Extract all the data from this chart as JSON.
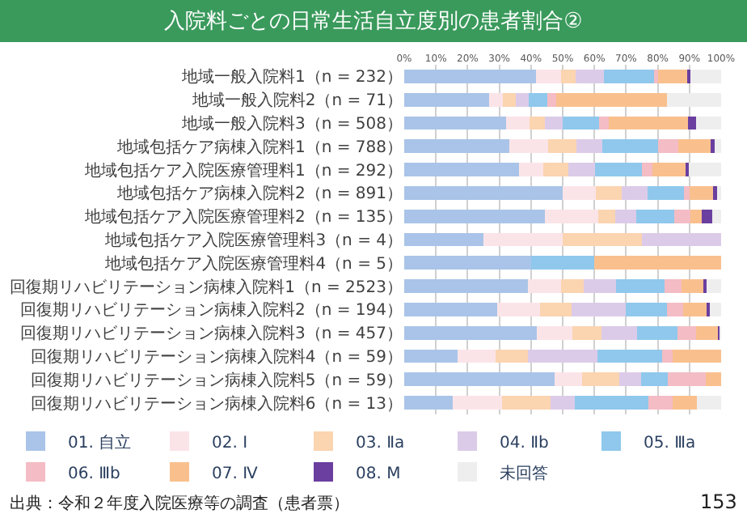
{
  "chart_data": {
    "type": "bar",
    "orientation": "horizontal",
    "stacked": true,
    "title": "入院料ごとの日常生活自立度別の患者割合②",
    "categories": [
      "地域一般入院料1（n = 232）",
      "地域一般入院料2（n = 71）",
      "地域一般入院料3（n = 508）",
      "地域包括ケア病棟入院料1（n = 788）",
      "地域包括ケア入院医療管理料1（n = 292）",
      "地域包括ケア病棟入院料2（n = 891）",
      "地域包括ケア入院医療管理料2（n = 135）",
      "地域包括ケア入院医療管理料3（n = 4）",
      "地域包括ケア入院医療管理料4（n = 5）",
      "回復期リハビリテーション病棟入院料1（n = 2523）",
      "回復期リハビリテーション病棟入院料2（n = 194）",
      "回復期リハビリテーション病棟入院料3（n = 457）",
      "回復期リハビリテーション病棟入院料4（n = 59）",
      "回復期リハビリテーション病棟入院料5（n = 59）",
      "回復期リハビリテーション病棟入院料6（n = 13）"
    ],
    "series": [
      {
        "name": "01. 自立",
        "color": "#a9c4e8",
        "values": [
          41.7,
          26.8,
          32.2,
          33.2,
          36.3,
          49.9,
          44.4,
          25,
          40,
          39.1,
          29.4,
          41.9,
          16.9,
          47.5,
          15.4
        ]
      },
      {
        "name": "02. Ⅰ",
        "color": "#fbe4e8",
        "values": [
          7.7,
          4.2,
          7.4,
          12.3,
          7.7,
          10.5,
          16.8,
          25,
          0,
          10.4,
          13.5,
          11.2,
          11.9,
          8.5,
          15.4
        ]
      },
      {
        "name": "03. Ⅱa",
        "color": "#fbd4b0",
        "values": [
          4.8,
          4.2,
          4.7,
          8.9,
          7.7,
          8.3,
          5.3,
          25,
          0,
          7.1,
          10.0,
          9.2,
          10.2,
          11.9,
          15.4
        ]
      },
      {
        "name": "04. Ⅱb",
        "color": "#dccbe8",
        "values": [
          8.9,
          4.2,
          5.8,
          8.0,
          8.4,
          8.0,
          6.7,
          25,
          0,
          10.3,
          17.1,
          11.2,
          22.0,
          6.8,
          7.7
        ]
      },
      {
        "name": "05. Ⅲa",
        "color": "#8fc8ec",
        "values": [
          15.6,
          5.7,
          11.3,
          17.7,
          14.8,
          11.5,
          12.0,
          0,
          20,
          15.2,
          13.0,
          12.6,
          20.3,
          8.5,
          23.1
        ]
      },
      {
        "name": "06. Ⅲb",
        "color": "#f4bcc4",
        "values": [
          1.4,
          2.8,
          3.2,
          6.4,
          3.4,
          1.9,
          5.0,
          0,
          0,
          5.5,
          5.1,
          6.0,
          3.4,
          11.9,
          7.7
        ]
      },
      {
        "name": "07. Ⅳ",
        "color": "#f9c08e",
        "values": [
          9.3,
          35.0,
          25.0,
          10.3,
          10.5,
          7.8,
          3.6,
          0,
          40,
          7.0,
          7.8,
          6.9,
          15.3,
          5.1,
          7.7
        ]
      },
      {
        "name": "08. M",
        "color": "#6a3fa0",
        "values": [
          1.0,
          0,
          2.4,
          1.1,
          0.9,
          0.9,
          3.3,
          0,
          0,
          0.9,
          0.5,
          0.9,
          0,
          0,
          0
        ]
      },
      {
        "name": "未回答",
        "color": "#eeeeee",
        "values": [
          9.6,
          17.1,
          8.0,
          2.1,
          10.3,
          1.2,
          2.9,
          0,
          0,
          4.5,
          3.6,
          0.1,
          0,
          0,
          7.7
        ]
      }
    ],
    "xlim": [
      0,
      100
    ],
    "xticks": [
      {
        "value": 0,
        "label": "0%"
      },
      {
        "value": 10,
        "label": "10%"
      },
      {
        "value": 20,
        "label": "20%"
      },
      {
        "value": 30,
        "label": "30%"
      },
      {
        "value": 40,
        "label": "40%"
      },
      {
        "value": 50,
        "label": "50%"
      },
      {
        "value": 60,
        "label": "60%"
      },
      {
        "value": 70,
        "label": "70%"
      },
      {
        "value": 80,
        "label": "80%"
      },
      {
        "value": 90,
        "label": "90%"
      },
      {
        "value": 100,
        "label": "100%"
      }
    ],
    "grid": "x",
    "legend": "bottom",
    "annotations": [
      "出典：令和２年度入院医療等の調査（患者票）",
      "153"
    ]
  }
}
